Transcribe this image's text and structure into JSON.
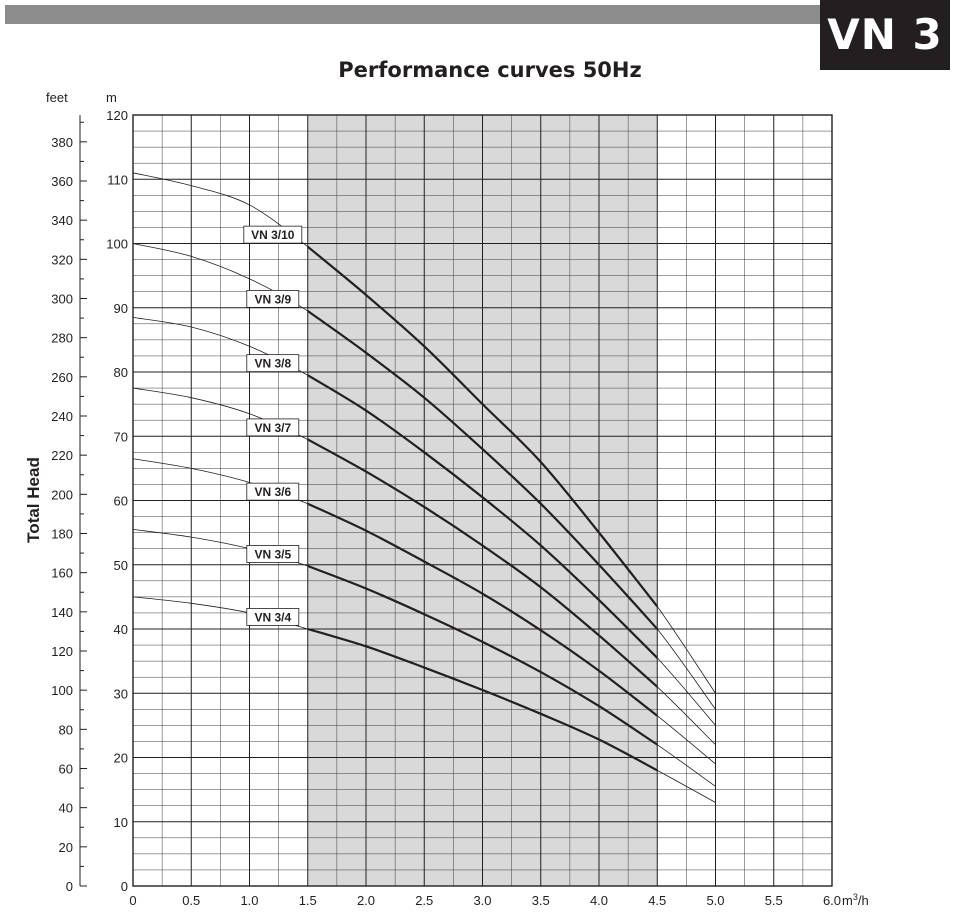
{
  "header": {
    "model": "VN 3",
    "title": "Performance curves 50Hz"
  },
  "chart_data": {
    "type": "line",
    "title": "Performance curves 50Hz",
    "xlabel": "m³/h",
    "ylabel": "Total Head",
    "ylabel_left_unit": "feet",
    "ylabel_right_unit": "m",
    "x_unit": "m³/h",
    "xlim": [
      0,
      6
    ],
    "ylim": [
      0,
      120
    ],
    "feet_ylim": [
      0,
      393.7
    ],
    "x_ticks": [
      "0",
      "0.5",
      "1.0",
      "1.5",
      "2.0",
      "2.5",
      "3.0",
      "3.5",
      "4.0",
      "4.5",
      "5.0",
      "5.5",
      "6.0"
    ],
    "x_tick_values": [
      0,
      0.5,
      1.0,
      1.5,
      2.0,
      2.5,
      3.0,
      3.5,
      4.0,
      4.5,
      5.0,
      5.5,
      6.0
    ],
    "m_ticks": [
      "0",
      "10",
      "20",
      "30",
      "40",
      "50",
      "60",
      "70",
      "80",
      "90",
      "100",
      "110",
      "120"
    ],
    "m_tick_values": [
      0,
      10,
      20,
      30,
      40,
      50,
      60,
      70,
      80,
      90,
      100,
      110,
      120
    ],
    "feet_ticks": [
      "0",
      "20",
      "40",
      "60",
      "80",
      "100",
      "120",
      "140",
      "160",
      "180",
      "200",
      "220",
      "240",
      "260",
      "280",
      "300",
      "320",
      "340",
      "360",
      "380"
    ],
    "feet_tick_values": [
      0,
      20,
      40,
      60,
      80,
      100,
      120,
      140,
      160,
      180,
      200,
      220,
      240,
      260,
      280,
      300,
      320,
      340,
      360,
      380
    ],
    "operating_range": [
      1.5,
      4.5
    ],
    "grid": true,
    "legend": "inline labels",
    "series": [
      {
        "name": "VN 3/10",
        "x": [
          0,
          0.5,
          1.0,
          1.5,
          2.0,
          2.5,
          3.0,
          3.5,
          4.0,
          4.5,
          5.0
        ],
        "y": [
          111,
          109,
          106,
          99.5,
          92,
          84,
          75,
          66,
          55,
          43.5,
          30
        ]
      },
      {
        "name": "VN 3/9",
        "x": [
          0,
          0.5,
          1.0,
          1.5,
          2.0,
          2.5,
          3.0,
          3.5,
          4.0,
          4.5,
          5.0
        ],
        "y": [
          100,
          98,
          94.5,
          89.5,
          83,
          76,
          68,
          59.5,
          50,
          40,
          27.5
        ]
      },
      {
        "name": "VN 3/8",
        "x": [
          0,
          0.5,
          1.0,
          1.5,
          2.0,
          2.5,
          3.0,
          3.5,
          4.0,
          4.5,
          5.0
        ],
        "y": [
          88.5,
          87,
          84,
          79.5,
          74,
          67.5,
          60.5,
          53,
          44.5,
          35.5,
          25
        ]
      },
      {
        "name": "VN 3/7",
        "x": [
          0,
          0.5,
          1.0,
          1.5,
          2.0,
          2.5,
          3.0,
          3.5,
          4.0,
          4.5,
          5.0
        ],
        "y": [
          77.5,
          76,
          73.5,
          69.5,
          64.5,
          59,
          53,
          46.5,
          39,
          31,
          22
        ]
      },
      {
        "name": "VN 3/6",
        "x": [
          0,
          0.5,
          1.0,
          1.5,
          2.0,
          2.5,
          3.0,
          3.5,
          4.0,
          4.5,
          5.0
        ],
        "y": [
          66.5,
          65,
          62.8,
          59.5,
          55.3,
          50.5,
          45.5,
          39.8,
          33.5,
          26.5,
          19
        ]
      },
      {
        "name": "VN 3/5",
        "x": [
          0,
          0.5,
          1.0,
          1.5,
          2.0,
          2.5,
          3.0,
          3.5,
          4.0,
          4.5,
          5.0
        ],
        "y": [
          55.5,
          54.3,
          52.5,
          49.8,
          46.3,
          42.3,
          38,
          33.3,
          28,
          22,
          15.5
        ]
      },
      {
        "name": "VN 3/4",
        "x": [
          0,
          0.5,
          1.0,
          1.5,
          2.0,
          2.5,
          3.0,
          3.5,
          4.0,
          4.5,
          5.0
        ],
        "y": [
          45,
          44,
          42.5,
          40,
          37.3,
          34,
          30.5,
          26.8,
          22.8,
          18,
          13
        ]
      }
    ]
  }
}
